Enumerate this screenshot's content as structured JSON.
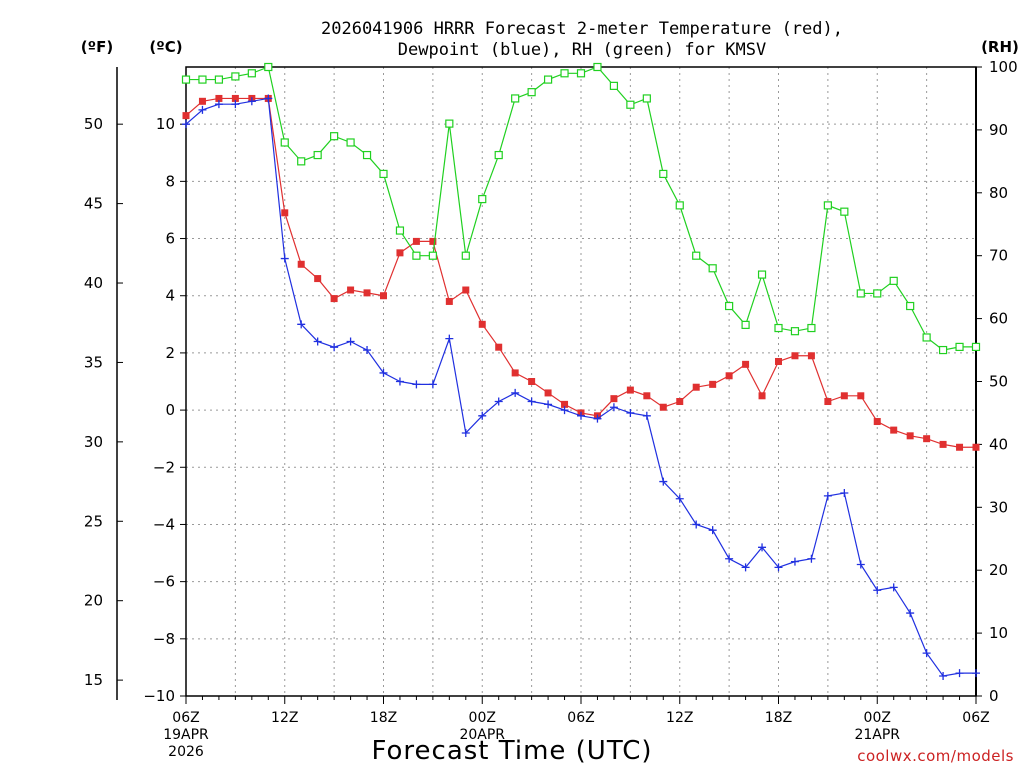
{
  "chart_data": {
    "type": "line",
    "title": {
      "line1": "2026041906 HRRR Forecast 2-meter Temperature (red),",
      "line2": "Dewpoint (blue), RH (green) for KMSV"
    },
    "unit_labels": {
      "fahrenheit": "(ºF)",
      "celsius": "(ºC)",
      "rh": "(RH)"
    },
    "xlabel": "Forecast Time (UTC)",
    "credit": "coolwx.com/models",
    "x_ticks": [
      {
        "hour": 0,
        "lines": [
          "06Z",
          "19APR",
          "2026"
        ]
      },
      {
        "hour": 6,
        "lines": [
          "12Z"
        ]
      },
      {
        "hour": 12,
        "lines": [
          "18Z"
        ]
      },
      {
        "hour": 18,
        "lines": [
          "00Z",
          "20APR"
        ]
      },
      {
        "hour": 24,
        "lines": [
          "06Z"
        ]
      },
      {
        "hour": 30,
        "lines": [
          "12Z"
        ]
      },
      {
        "hour": 36,
        "lines": [
          "18Z"
        ]
      },
      {
        "hour": 42,
        "lines": [
          "00Z",
          "21APR"
        ]
      },
      {
        "hour": 48,
        "lines": [
          "06Z"
        ]
      }
    ],
    "x_range_hours": [
      0,
      48
    ],
    "celsius_axis": {
      "range": [
        -10,
        12
      ],
      "ticks": [
        "10",
        "8",
        "6",
        "4",
        "2",
        "0",
        "−2",
        "−4",
        "−6",
        "−8",
        "−10"
      ]
    },
    "fahrenheit_axis": {
      "ticks": [
        "50",
        "45",
        "40",
        "35",
        "30",
        "25",
        "20",
        "15"
      ]
    },
    "rh_axis": {
      "range": [
        0,
        100
      ],
      "ticks": [
        "100",
        "90",
        "80",
        "70",
        "60",
        "50",
        "40",
        "30",
        "20",
        "10",
        "0"
      ]
    },
    "grid": true,
    "colors": {
      "temperature": "#e03030",
      "dewpoint": "#2030e0",
      "rh": "#20d020",
      "grid": "#999999"
    },
    "series": [
      {
        "name": "Temperature (red)",
        "axis": "celsius",
        "marker": "filled-square",
        "values": [
          10.3,
          10.8,
          10.9,
          10.9,
          10.9,
          10.9,
          6.9,
          5.1,
          4.6,
          3.9,
          4.2,
          4.1,
          4.0,
          5.5,
          5.9,
          5.9,
          3.8,
          4.2,
          3.0,
          2.2,
          1.3,
          1.0,
          0.6,
          0.2,
          -0.1,
          -0.2,
          0.4,
          0.7,
          0.5,
          0.1,
          0.3,
          0.8,
          0.9,
          1.2,
          1.6,
          0.5,
          1.7,
          1.9,
          1.9,
          0.3,
          0.5,
          0.5,
          -0.4,
          -0.7,
          -0.9,
          -1.0,
          -1.2,
          -1.3,
          -1.3
        ]
      },
      {
        "name": "Dewpoint (blue)",
        "axis": "celsius",
        "marker": "plus",
        "values": [
          10.0,
          10.5,
          10.7,
          10.7,
          10.8,
          10.9,
          5.3,
          3.0,
          2.4,
          2.2,
          2.4,
          2.1,
          1.3,
          1.0,
          0.9,
          0.9,
          2.5,
          -0.8,
          -0.2,
          0.3,
          0.6,
          0.3,
          0.2,
          0.0,
          -0.2,
          -0.3,
          0.1,
          -0.1,
          -0.2,
          -2.5,
          -3.1,
          -4.0,
          -4.2,
          -5.2,
          -5.5,
          -4.8,
          -5.5,
          -5.3,
          -5.2,
          -3.0,
          -2.9,
          -5.4,
          -6.3,
          -6.2,
          -7.1,
          -8.5,
          -9.3,
          -9.2,
          -9.2
        ]
      },
      {
        "name": "RH (green)",
        "axis": "rh",
        "marker": "open-square",
        "values": [
          98,
          98,
          98,
          98.5,
          99,
          100,
          88,
          85,
          86,
          89,
          88,
          86,
          83,
          74,
          70,
          70,
          91,
          70,
          79,
          86,
          95,
          96,
          98,
          99,
          99,
          100,
          97,
          94,
          95,
          83,
          78,
          70,
          68,
          62,
          59,
          67,
          58.5,
          58,
          58.5,
          78,
          77,
          64,
          64,
          66,
          62,
          57,
          55,
          55.5,
          55.5
        ]
      }
    ]
  }
}
